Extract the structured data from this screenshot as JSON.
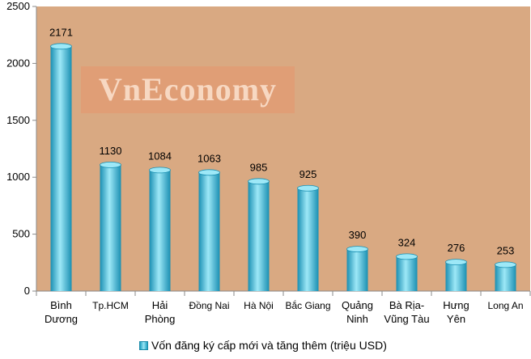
{
  "chart_data": {
    "type": "bar",
    "categories": [
      "Bình\nDương",
      "Tp.HCM",
      "Hải\nPhòng",
      "Đồng Nai",
      "Hà Nội",
      "Bắc Giang",
      "Quảng\nNinh",
      "Bà Rịa-\nVũng Tàu",
      "Hưng\nYên",
      "Long An"
    ],
    "series": [
      {
        "name": "Vốn đăng  ký cấp mới và tăng thêm (triệu USD)",
        "values": [
          2171,
          1130,
          1084,
          1063,
          985,
          925,
          390,
          324,
          276,
          253
        ]
      }
    ],
    "data_labels": [
      "2171",
      "1130",
      "1084",
      "1063",
      "985",
      "925",
      "390",
      "324",
      "276",
      "253"
    ],
    "ylim": [
      0,
      2500
    ],
    "yticks": [
      0,
      500,
      1000,
      1500,
      2000,
      2500
    ],
    "grid": false,
    "legend_position": "bottom",
    "colors": {
      "plot_background": "#d9a982",
      "bar_dark": "#1a8fb2",
      "bar_light": "#9de8f7",
      "axis": "#8a8a8a"
    },
    "watermark": "VnEconomy"
  }
}
